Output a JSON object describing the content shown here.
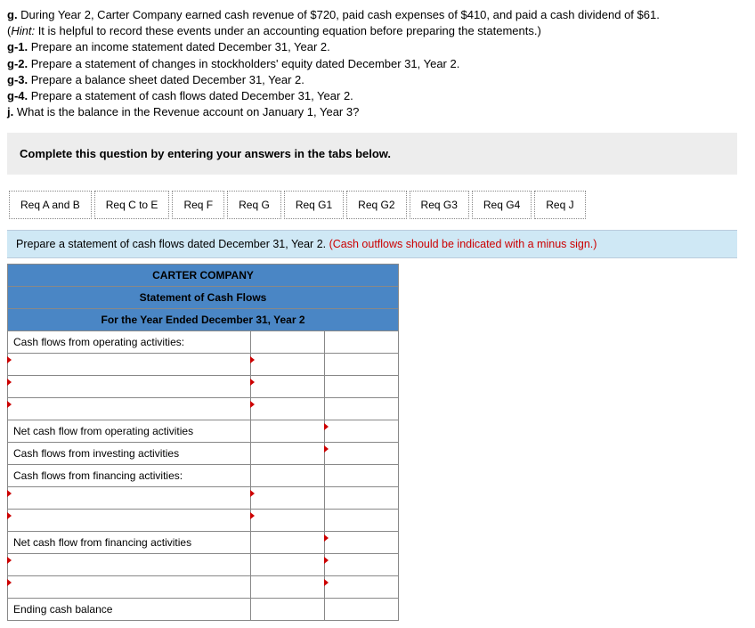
{
  "question": {
    "g": "During Year 2, Carter Company earned cash revenue of $720, paid cash expenses of $410, and paid a cash dividend of $61.",
    "hint_label": "Hint:",
    "hint": " It is helpful to record these events under an accounting equation before preparing the statements.)",
    "g1": "Prepare an income statement dated December 31, Year 2.",
    "g2": "Prepare a statement of changes in stockholders' equity dated December 31, Year 2.",
    "g3": "Prepare a balance sheet dated December 31, Year 2.",
    "g4": "Prepare a statement of cash flows dated December 31, Year 2.",
    "j": "What is the balance in the Revenue account on January 1, Year 3?"
  },
  "complete_text": "Complete this question by entering your answers in the tabs below.",
  "tabs": {
    "t1": "Req A and B",
    "t2": "Req C to E",
    "t3": "Req F",
    "t4": "Req G",
    "t5": "Req G1",
    "t6": "Req G2",
    "t7": "Req G3",
    "t8": "Req G4",
    "t9": "Req J"
  },
  "instruction": {
    "text": "Prepare a statement of cash flows dated December 31, Year 2. ",
    "red": "(Cash outflows should be indicated with a minus sign.)"
  },
  "stmt": {
    "company": "CARTER COMPANY",
    "title": "Statement of Cash Flows",
    "period": "For the Year Ended December 31, Year 2",
    "row_op": "Cash flows from operating activities:",
    "row_net_op": "Net cash flow from operating activities",
    "row_inv": "Cash flows from investing activities",
    "row_fin": "Cash flows from financing activities:",
    "row_net_fin": "Net cash flow from financing activities",
    "row_end": "Ending cash balance"
  }
}
